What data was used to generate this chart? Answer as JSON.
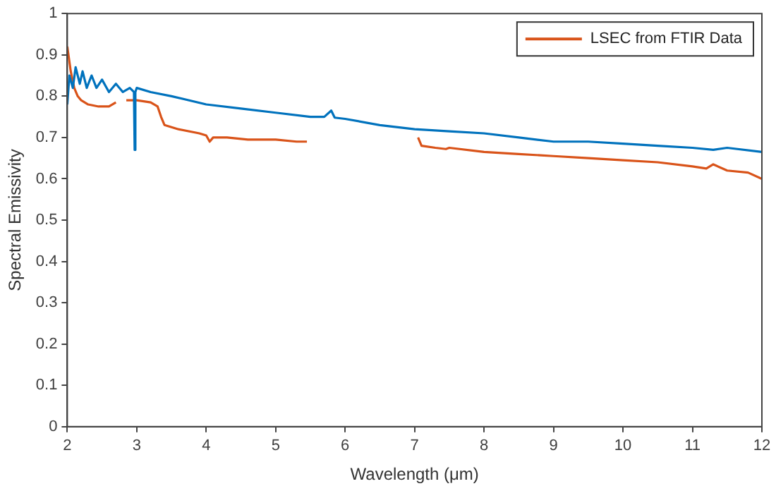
{
  "chart_data": {
    "type": "line",
    "xlabel": "Wavelength (μm)",
    "ylabel": "Spectral Emissivity",
    "xlim": [
      2,
      12
    ],
    "ylim": [
      0,
      1
    ],
    "xticks": [
      2,
      3,
      4,
      5,
      6,
      7,
      8,
      9,
      10,
      11,
      12
    ],
    "yticks": [
      0,
      0.1,
      0.2,
      0.3,
      0.4,
      0.5,
      0.6,
      0.7,
      0.8,
      0.9,
      1
    ],
    "grid": false,
    "legend": "top right",
    "marker": "none",
    "line_style": "solid",
    "series": [
      {
        "color": "#0072bd",
        "x": [
          2,
          2.03,
          2.08,
          2.12,
          2.18,
          2.22,
          2.28,
          2.35,
          2.42,
          2.5,
          2.6,
          2.7,
          2.8,
          2.9,
          2.96,
          2.97,
          2.98,
          3.0,
          3.2,
          3.5,
          4,
          4.5,
          5,
          5.5,
          5.7,
          5.8,
          5.85,
          6,
          6.5,
          7,
          7.5,
          8,
          8.5,
          9,
          9.5,
          10,
          10.5,
          11,
          11.3,
          11.5,
          12
        ],
        "values": [
          0.78,
          0.85,
          0.82,
          0.87,
          0.83,
          0.86,
          0.82,
          0.85,
          0.82,
          0.84,
          0.81,
          0.83,
          0.81,
          0.82,
          0.81,
          0.67,
          0.81,
          0.82,
          0.81,
          0.8,
          0.78,
          0.77,
          0.76,
          0.75,
          0.75,
          0.765,
          0.748,
          0.745,
          0.73,
          0.72,
          0.715,
          0.71,
          0.7,
          0.69,
          0.69,
          0.685,
          0.68,
          0.675,
          0.67,
          0.675,
          0.665
        ]
      },
      {
        "name": "LSEC from FTIR Data",
        "color": "#d95319",
        "x": [
          2,
          2.05,
          2.1,
          2.15,
          2.2,
          2.3,
          2.45,
          2.6,
          2.7,
          2.75,
          2.85,
          3.0,
          3.2,
          3.3,
          3.35,
          3.4,
          3.6,
          3.9,
          4.0,
          4.05,
          4.1,
          4.3,
          4.6,
          5.0,
          5.3,
          5.45,
          5.5,
          7.05,
          7.1,
          7.3,
          7.45,
          7.5,
          8,
          8.5,
          9,
          9.5,
          10,
          10.5,
          11,
          11.2,
          11.3,
          11.5,
          11.8,
          12
        ],
        "values": [
          0.92,
          0.86,
          0.82,
          0.8,
          0.79,
          0.78,
          0.775,
          0.775,
          0.785,
          null,
          0.79,
          0.79,
          0.785,
          0.775,
          0.75,
          0.73,
          0.72,
          0.71,
          0.705,
          0.69,
          0.7,
          0.7,
          0.695,
          0.695,
          0.69,
          0.69,
          null,
          0.7,
          0.68,
          0.675,
          0.672,
          0.675,
          0.665,
          0.66,
          0.655,
          0.65,
          0.645,
          0.64,
          0.63,
          0.625,
          0.635,
          0.62,
          0.615,
          0.6
        ]
      }
    ]
  }
}
